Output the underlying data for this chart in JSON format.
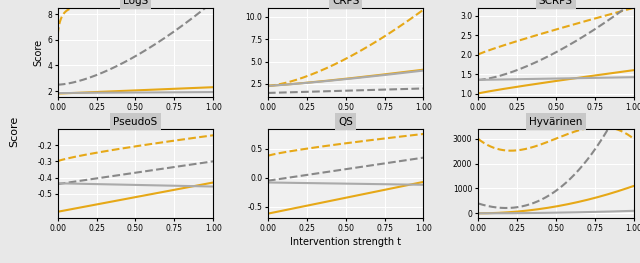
{
  "titles": [
    "LogS",
    "CRPS",
    "SCRPS",
    "PseudoS",
    "QS",
    "Hyvärinen"
  ],
  "background_color": "#e8e8e8",
  "plot_bg_color": "#f0f0f0",
  "orange_solid_color": "#e6a817",
  "orange_dashed_color": "#e6a817",
  "gray_solid_color": "#aaaaaa",
  "gray_dashed_color": "#888888",
  "xlabel": "Intervention strength t",
  "ylabel": "Score",
  "xlim": [
    0.0,
    1.0
  ],
  "xticks": [
    0.0,
    0.25,
    0.5,
    0.75,
    1.0
  ],
  "title_bar_color": "#c8c8c8"
}
